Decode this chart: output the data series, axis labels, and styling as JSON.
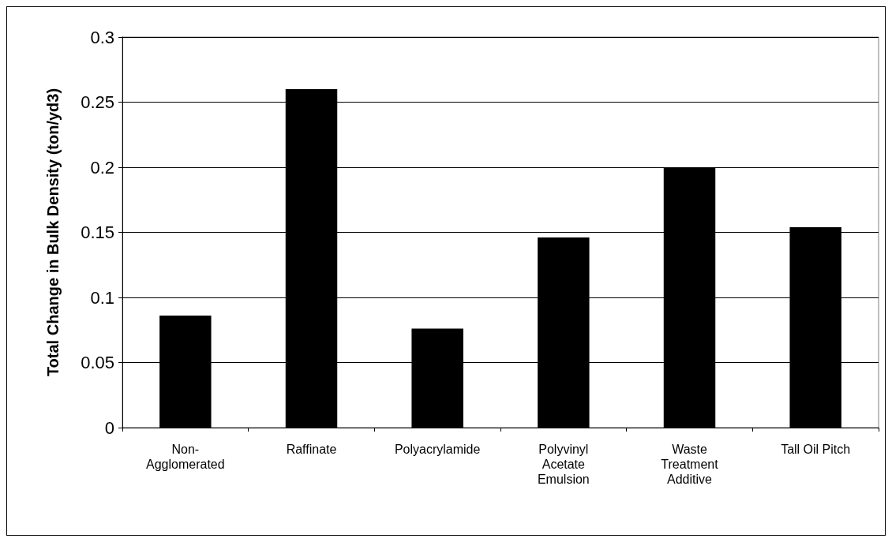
{
  "chart_data": {
    "type": "bar",
    "ylabel": "Total Change in Bulk Density (ton/yd3)",
    "categories": [
      "Non-Agglomerated",
      "Raffinate",
      "Polyacrylamide",
      "Polyvinyl Acetate Emulsion",
      "Waste Treatment Additive",
      "Tall Oil Pitch"
    ],
    "values": [
      0.086,
      0.26,
      0.076,
      0.146,
      0.2,
      0.154
    ],
    "color": "#000000",
    "ylim": [
      0,
      0.3
    ],
    "yticks": [
      0,
      0.05,
      0.1,
      0.15,
      0.2,
      0.25,
      0.3
    ],
    "grid": "y"
  }
}
